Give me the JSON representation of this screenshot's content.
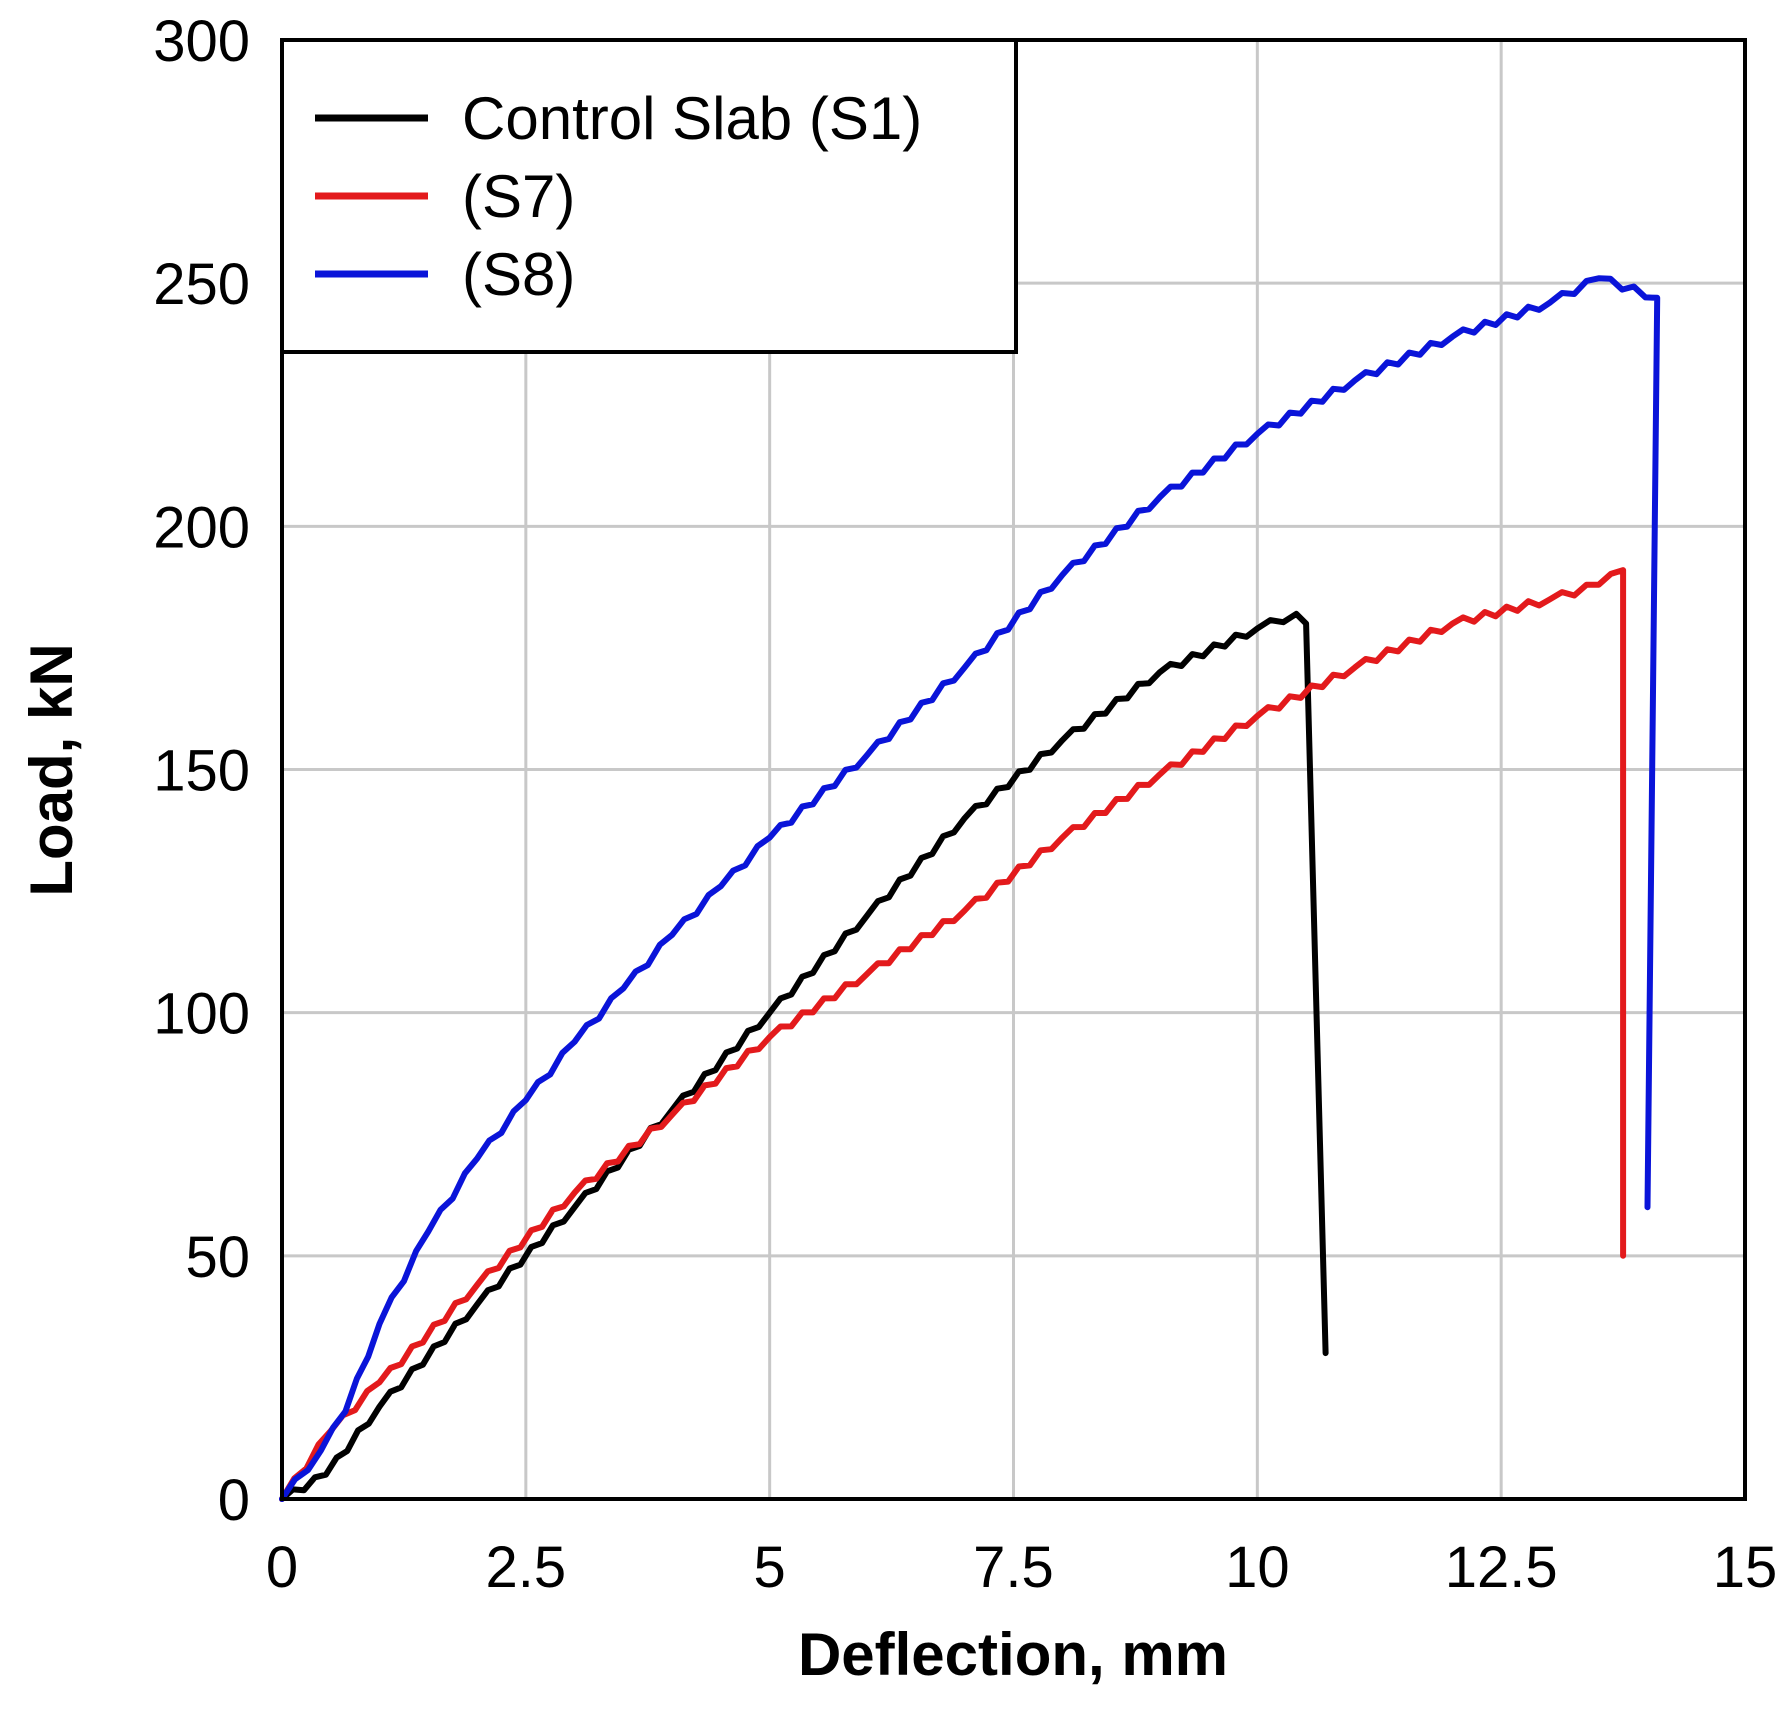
{
  "chart_data": {
    "type": "line",
    "title": "",
    "xlabel": "Deflection, mm",
    "ylabel": "Load, kN",
    "xlim": [
      0,
      15
    ],
    "ylim": [
      0,
      300
    ],
    "x_ticks": [
      "0",
      "2.5",
      "5",
      "7.5",
      "10",
      "12.5",
      "15"
    ],
    "y_ticks": [
      "0",
      "50",
      "100",
      "150",
      "200",
      "250",
      "300"
    ],
    "grid": true,
    "legend_position": "top-left",
    "series": [
      {
        "name": "Control Slab (S1)",
        "color": "#000000",
        "x": [
          0,
          0.45,
          1.0,
          2.0,
          3.0,
          4.0,
          5.0,
          6.0,
          7.0,
          8.0,
          9.0,
          10.0,
          10.4,
          10.5,
          10.7
        ],
        "y": [
          0,
          5,
          19,
          40,
          60,
          80,
          100,
          120,
          140,
          156,
          170,
          179,
          182,
          180,
          30
        ]
      },
      {
        "name": "(S7)",
        "color": "#e31a1c",
        "x": [
          0,
          0.5,
          1.0,
          2.0,
          3.0,
          4.0,
          5.0,
          6.0,
          7.0,
          8.0,
          9.0,
          10.0,
          11.0,
          12.0,
          13.0,
          13.5,
          13.75,
          13.75
        ],
        "y": [
          0,
          14,
          24,
          44,
          63,
          79,
          95,
          108,
          121,
          136,
          149,
          161,
          171,
          180,
          185,
          188,
          191,
          50
        ]
      },
      {
        "name": "(S8)",
        "color": "#0a14d9",
        "x": [
          0,
          0.4,
          0.65,
          1.0,
          1.5,
          2.0,
          2.5,
          3.0,
          3.5,
          4.0,
          4.5,
          5.0,
          6.0,
          7.0,
          8.0,
          9.0,
          10.0,
          11.0,
          12.0,
          13.0,
          13.5,
          14.1,
          14.0
        ],
        "y": [
          0,
          10,
          18,
          36,
          55,
          70,
          82,
          94,
          105,
          116,
          126,
          136,
          153,
          171,
          190,
          206,
          219,
          230,
          239,
          246,
          251,
          247,
          60
        ]
      }
    ]
  }
}
